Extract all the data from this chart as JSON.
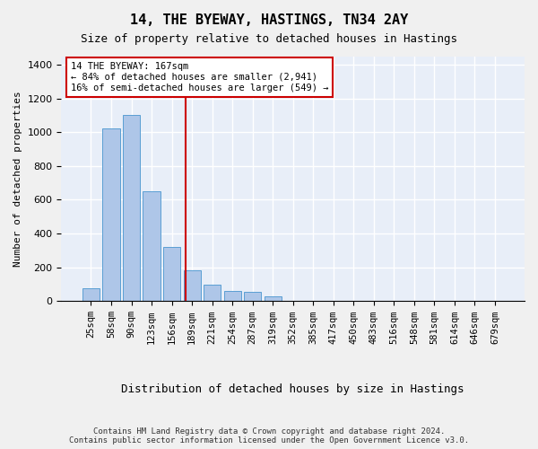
{
  "title": "14, THE BYEWAY, HASTINGS, TN34 2AY",
  "subtitle": "Size of property relative to detached houses in Hastings",
  "xlabel": "Distribution of detached houses by size in Hastings",
  "ylabel": "Number of detached properties",
  "bar_labels": [
    "25sqm",
    "58sqm",
    "90sqm",
    "123sqm",
    "156sqm",
    "189sqm",
    "221sqm",
    "254sqm",
    "287sqm",
    "319sqm",
    "352sqm",
    "385sqm",
    "417sqm",
    "450sqm",
    "483sqm",
    "516sqm",
    "548sqm",
    "581sqm",
    "614sqm",
    "646sqm",
    "679sqm"
  ],
  "bar_values": [
    75,
    1020,
    1100,
    650,
    320,
    185,
    95,
    60,
    55,
    30,
    0,
    0,
    0,
    0,
    0,
    0,
    0,
    0,
    0,
    0,
    0
  ],
  "bar_color": "#aec6e8",
  "bar_edge_color": "#5a9fd4",
  "bg_color": "#e8eef8",
  "grid_color": "#ffffff",
  "vline_x": 4.67,
  "vline_color": "#cc0000",
  "annotation_line1": "14 THE BYEWAY: 167sqm",
  "annotation_line2": "← 84% of detached houses are smaller (2,941)",
  "annotation_line3": "16% of semi-detached houses are larger (549) →",
  "annotation_box_color": "#ffffff",
  "annotation_box_edge": "#cc0000",
  "ylim": [
    0,
    1450
  ],
  "yticks": [
    0,
    200,
    400,
    600,
    800,
    1000,
    1200,
    1400
  ],
  "footer_line1": "Contains HM Land Registry data © Crown copyright and database right 2024.",
  "footer_line2": "Contains public sector information licensed under the Open Government Licence v3.0."
}
